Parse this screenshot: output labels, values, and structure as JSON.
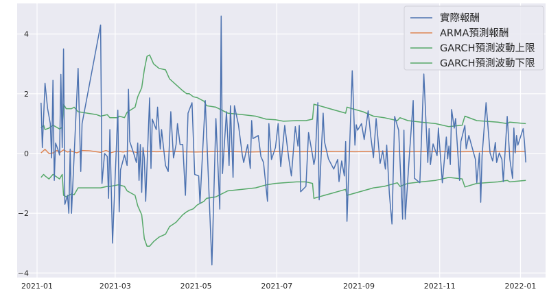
{
  "chart_data": {
    "type": "line",
    "title": "",
    "xlabel": "",
    "ylabel": "",
    "x_units": "days since 2021-01-01",
    "xlim": [
      -15,
      380
    ],
    "ylim": [
      -4.2,
      4.9
    ],
    "grid": true,
    "legend_position": "top-right",
    "x_ticks": [
      {
        "day": 0,
        "label": "2021-01"
      },
      {
        "day": 59,
        "label": "2021-03"
      },
      {
        "day": 120,
        "label": "2021-05"
      },
      {
        "day": 181,
        "label": "2021-07"
      },
      {
        "day": 243,
        "label": "2021-09"
      },
      {
        "day": 304,
        "label": "2021-11"
      },
      {
        "day": 365,
        "label": "2022-01"
      }
    ],
    "y_ticks": [
      {
        "value": -4,
        "label": "−4"
      },
      {
        "value": -2,
        "label": "−2"
      },
      {
        "value": 0,
        "label": "0"
      },
      {
        "value": 2,
        "label": "2"
      },
      {
        "value": 4,
        "label": "4"
      }
    ],
    "series": [
      {
        "name": "實際報酬",
        "color": "#4c72b0",
        "x": [
          3,
          4,
          6,
          8,
          10,
          11,
          12,
          13,
          14,
          16,
          17,
          18,
          19,
          20,
          21,
          23,
          24,
          25,
          26,
          31,
          33,
          34,
          48,
          49,
          51,
          53,
          54,
          55,
          57,
          61,
          62,
          63,
          66,
          68,
          69,
          70,
          73,
          75,
          76,
          77,
          78,
          79,
          80,
          81,
          82,
          85,
          86,
          87,
          90,
          91,
          93,
          94,
          97,
          99,
          101,
          103,
          105,
          106,
          108,
          110,
          112,
          114,
          117,
          119,
          122,
          123,
          127,
          132,
          135,
          138,
          139,
          140,
          143,
          145,
          146,
          148,
          149,
          152,
          155,
          156,
          159,
          161,
          162,
          163,
          167,
          169,
          171,
          174,
          175,
          177,
          180,
          182,
          184,
          187,
          190,
          192,
          195,
          197,
          198,
          199,
          203,
          205,
          208,
          209,
          210,
          212,
          213,
          215,
          216,
          217,
          220,
          224,
          227,
          228,
          230,
          232,
          233,
          234,
          236,
          238,
          240,
          241,
          242,
          245,
          247,
          250,
          252,
          254,
          256,
          259,
          261,
          263,
          264,
          266,
          268,
          270,
          273,
          276,
          277,
          278,
          281,
          284,
          285,
          289,
          292,
          295,
          296,
          297,
          299,
          302,
          303,
          306,
          309,
          310,
          311,
          312,
          313,
          315,
          316,
          319,
          320,
          323,
          324,
          326,
          331,
          332,
          334,
          335,
          336,
          339,
          342,
          344,
          346,
          347,
          349,
          351,
          352,
          355,
          357,
          359,
          360,
          361,
          362,
          363,
          367,
          368,
          369
        ],
        "y": [
          1.7,
          0.2,
          2.35,
          1.5,
          1.0,
          -0.15,
          2.45,
          -0.9,
          0.35,
          0.1,
          -0.05,
          2.65,
          0.2,
          3.5,
          -1.7,
          -1.4,
          -2.0,
          0.15,
          -2.0,
          2.85,
          -0.6,
          1.0,
          4.3,
          -1.0,
          0.0,
          -0.1,
          -1.5,
          0.8,
          -3.0,
          1.45,
          -1.95,
          -0.55,
          -0.05,
          -0.4,
          2.15,
          0.4,
          0.0,
          -0.3,
          0.35,
          -0.9,
          0.3,
          -1.3,
          0.2,
          -0.15,
          -1.6,
          1.86,
          -0.5,
          1.15,
          0.8,
          1.55,
          0.15,
          0.8,
          -0.4,
          -0.6,
          1.4,
          -0.15,
          0.3,
          1.0,
          0.3,
          0.3,
          -1.4,
          1.35,
          1.7,
          -0.7,
          -0.75,
          -1.67,
          1.77,
          -3.73,
          1.17,
          -1.86,
          4.6,
          -0.67,
          1.4,
          -0.4,
          1.6,
          -0.8,
          1.6,
          0.97,
          -0.05,
          -0.3,
          0.3,
          -0.5,
          1.1,
          0.5,
          0.6,
          -0.1,
          -0.3,
          -1.6,
          1.0,
          -0.2,
          0.2,
          1.0,
          -0.44,
          0.94,
          -0.15,
          -0.75,
          0.9,
          0.25,
          0.94,
          -1.28,
          -1.1,
          0.7,
          -0.05,
          -0.37,
          -0.14,
          1.7,
          -1.55,
          0.4,
          1.35,
          0.4,
          -0.18,
          -0.52,
          -0.2,
          -0.94,
          -0.25,
          -0.75,
          0.4,
          -2.27,
          0.25,
          2.77,
          0.28,
          0.96,
          0.78,
          1.0,
          0.47,
          1.43,
          0.55,
          -0.14,
          1.17,
          -0.33,
          0.09,
          -0.52,
          0.28,
          -1.35,
          -2.36,
          1.24,
          0.78,
          -2.2,
          0.78,
          -2.2,
          -0.14,
          1.77,
          -0.83,
          -0.98,
          2.66,
          -0.3,
          0.83,
          -0.37,
          0.32,
          -0.07,
          0.85,
          -0.98,
          0.55,
          -0.18,
          0.25,
          -0.37,
          1.47,
          0.85,
          1.17,
          -0.9,
          0.4,
          0.94,
          0.16,
          0.6,
          -0.2,
          -0.98,
          0.02,
          -1.63,
          -0.07,
          1.7,
          0.02,
          -0.25,
          0.37,
          -0.3,
          0.02,
          -0.2,
          -0.94,
          1.24,
          -0.2,
          -0.83,
          0.85,
          0.02,
          0.6,
          0.28,
          0.83,
          0.4,
          -0.3
        ]
      },
      {
        "name": "ARMA預測報酬",
        "color": "#dd8452",
        "x": [
          3,
          6,
          9,
          12,
          15,
          17,
          20,
          23,
          26,
          30,
          34,
          40,
          48,
          52,
          56,
          60,
          65,
          70,
          75,
          80,
          90,
          100,
          120,
          140,
          160,
          180,
          200,
          220,
          240,
          260,
          280,
          300,
          320,
          340,
          360,
          369
        ],
        "y": [
          0.02,
          0.14,
          0.0,
          0.02,
          0.1,
          0.03,
          0.12,
          0.05,
          0.08,
          0.02,
          0.1,
          0.09,
          0.04,
          0.1,
          0.03,
          0.08,
          0.05,
          0.09,
          0.04,
          0.08,
          0.06,
          0.07,
          0.05,
          0.07,
          0.05,
          0.07,
          0.06,
          0.07,
          0.06,
          0.07,
          0.06,
          0.07,
          0.06,
          0.07,
          0.06,
          0.07
        ]
      },
      {
        "name": "GARCH預測波動上限",
        "color": "#55a868",
        "x": [
          3,
          5,
          6,
          9,
          12,
          17,
          19,
          20,
          22,
          26,
          28,
          31,
          45,
          48,
          53,
          55,
          61,
          62,
          66,
          68,
          74,
          76,
          79,
          81,
          83,
          85,
          88,
          92,
          97,
          100,
          105,
          110,
          113,
          115,
          118,
          121,
          126,
          128,
          135,
          144,
          155,
          165,
          173,
          180,
          186,
          196,
          203,
          208,
          209,
          213,
          217,
          221,
          233,
          234,
          238,
          246,
          254,
          262,
          272,
          274,
          280,
          290,
          301,
          311,
          321,
          323,
          332,
          348,
          355,
          357,
          369
        ],
        "y": [
          0.85,
          0.95,
          0.8,
          0.85,
          0.95,
          0.82,
          0.88,
          1.65,
          1.5,
          1.5,
          1.55,
          1.4,
          1.3,
          1.25,
          1.3,
          1.2,
          1.2,
          1.25,
          1.2,
          1.38,
          1.55,
          1.9,
          2.2,
          2.8,
          3.25,
          3.3,
          3.0,
          2.85,
          2.8,
          2.5,
          2.3,
          2.1,
          2.0,
          2.0,
          1.9,
          1.87,
          1.75,
          1.6,
          1.55,
          1.35,
          1.3,
          1.25,
          1.15,
          1.13,
          1.08,
          1.1,
          1.1,
          1.15,
          1.65,
          1.6,
          1.55,
          1.5,
          1.35,
          1.55,
          1.5,
          1.4,
          1.25,
          1.2,
          1.1,
          1.2,
          1.1,
          1.05,
          1.0,
          0.9,
          0.95,
          1.25,
          1.1,
          1.05,
          1.0,
          1.05,
          1.0
        ]
      },
      {
        "name": "GARCH預測波動下限",
        "color": "#55a868",
        "x": [
          3,
          5,
          6,
          9,
          12,
          17,
          19,
          20,
          22,
          26,
          28,
          31,
          45,
          48,
          53,
          55,
          61,
          62,
          66,
          68,
          74,
          76,
          79,
          81,
          83,
          85,
          88,
          92,
          97,
          100,
          105,
          110,
          113,
          115,
          118,
          121,
          126,
          128,
          135,
          144,
          155,
          165,
          173,
          180,
          186,
          196,
          203,
          208,
          209,
          213,
          217,
          221,
          233,
          234,
          238,
          246,
          254,
          262,
          272,
          274,
          280,
          290,
          301,
          311,
          321,
          323,
          332,
          348,
          355,
          357,
          369
        ],
        "y": [
          -0.8,
          -0.7,
          -0.75,
          -0.85,
          -0.7,
          -0.85,
          -0.7,
          -1.4,
          -1.45,
          -1.35,
          -1.38,
          -1.15,
          -1.15,
          -1.15,
          -1.1,
          -1.1,
          -1.05,
          -1.05,
          -1.1,
          -1.25,
          -1.4,
          -1.75,
          -2.05,
          -2.85,
          -3.1,
          -3.1,
          -2.95,
          -2.8,
          -2.7,
          -2.45,
          -2.3,
          -2.05,
          -1.95,
          -1.9,
          -1.85,
          -1.72,
          -1.6,
          -1.5,
          -1.45,
          -1.25,
          -1.2,
          -1.15,
          -1.05,
          -1.0,
          -0.98,
          -0.95,
          -0.95,
          -1.0,
          -1.5,
          -1.45,
          -1.4,
          -1.35,
          -1.2,
          -1.4,
          -1.35,
          -1.25,
          -1.15,
          -1.1,
          -0.98,
          -1.1,
          -1.0,
          -0.95,
          -0.9,
          -0.8,
          -0.85,
          -1.12,
          -1.0,
          -0.95,
          -0.9,
          -0.95,
          -0.9
        ]
      }
    ]
  }
}
